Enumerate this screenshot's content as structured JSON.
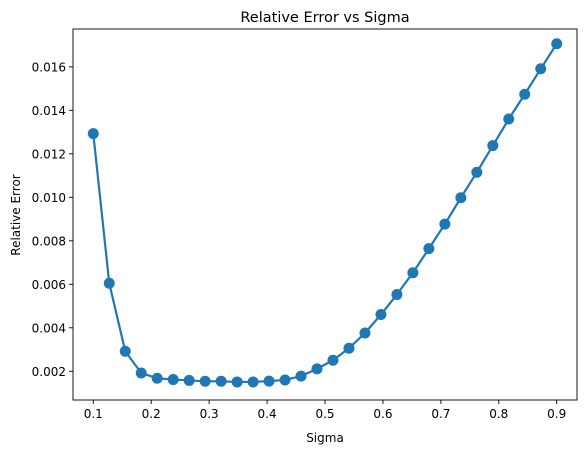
{
  "chart_data": {
    "type": "line",
    "title": "Relative Error vs Sigma",
    "xlabel": "Sigma",
    "ylabel": "Relative Error",
    "xlim": [
      0.065,
      0.935
    ],
    "ylim": [
      0.00068,
      0.01774
    ],
    "x_ticks": [
      0.1,
      0.2,
      0.3,
      0.4,
      0.5,
      0.6,
      0.7,
      0.8,
      0.9
    ],
    "x_tick_labels": [
      "0.1",
      "0.2",
      "0.3",
      "0.4",
      "0.5",
      "0.6",
      "0.7",
      "0.8",
      "0.9"
    ],
    "y_ticks": [
      0.002,
      0.004,
      0.006,
      0.008,
      0.01,
      0.012,
      0.014,
      0.016
    ],
    "y_tick_labels": [
      "0.002",
      "0.004",
      "0.006",
      "0.008",
      "0.010",
      "0.012",
      "0.014",
      "0.016"
    ],
    "grid": false,
    "legend": "none",
    "color": "#1f77b4",
    "marker": "circle",
    "series": [
      {
        "x": [
          0.1,
          0.1276,
          0.1552,
          0.1828,
          0.2103,
          0.2379,
          0.2655,
          0.2931,
          0.3207,
          0.3483,
          0.3759,
          0.4034,
          0.431,
          0.4586,
          0.4862,
          0.5138,
          0.5414,
          0.569,
          0.5966,
          0.6241,
          0.6517,
          0.6793,
          0.7069,
          0.7345,
          0.7621,
          0.7897,
          0.8172,
          0.8448,
          0.8724,
          0.9
        ],
        "y": [
          0.01293,
          0.00605,
          0.00292,
          0.00192,
          0.00168,
          0.00162,
          0.00158,
          0.00154,
          0.00154,
          0.00151,
          0.00151,
          0.00155,
          0.0016,
          0.00178,
          0.00211,
          0.00251,
          0.00306,
          0.00376,
          0.00461,
          0.00553,
          0.00653,
          0.00764,
          0.00877,
          0.00998,
          0.01115,
          0.01238,
          0.0136,
          0.01474,
          0.01591,
          0.01706
        ]
      }
    ]
  }
}
